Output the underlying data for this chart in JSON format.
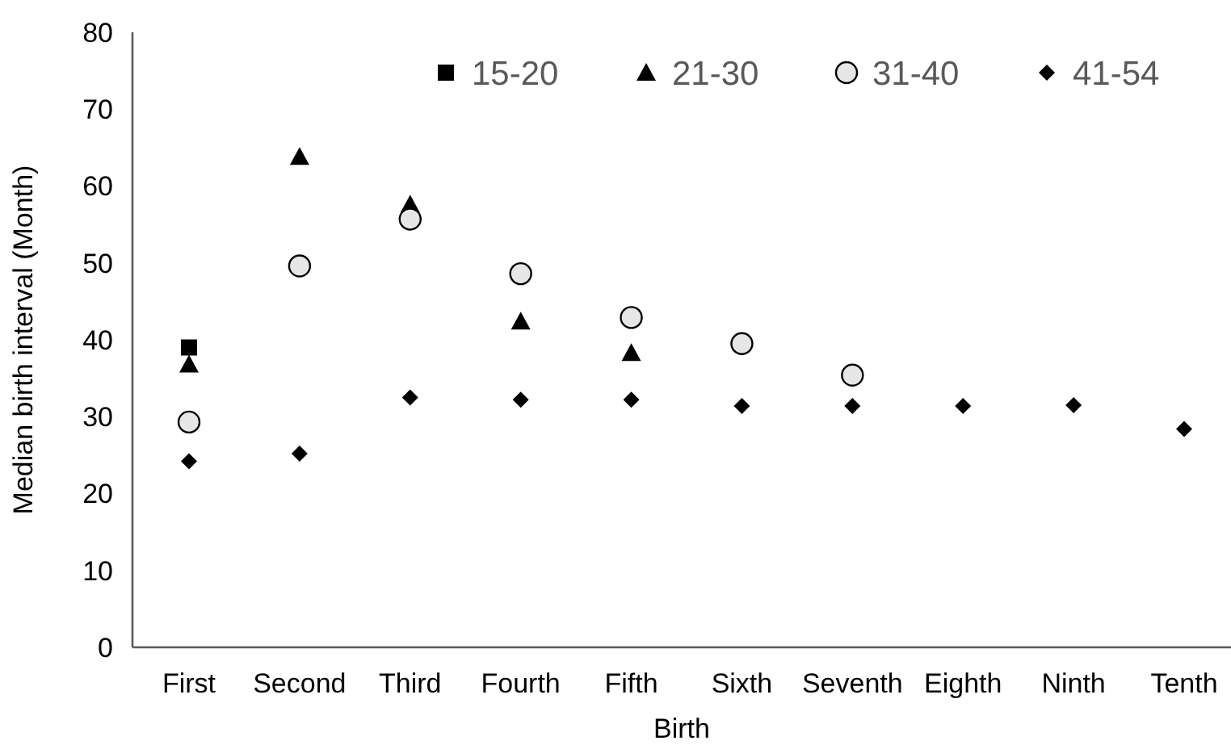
{
  "chart_data": {
    "type": "scatter",
    "xlabel": "Birth",
    "ylabel": "Median birth interval (Month)",
    "categories": [
      "First",
      "Second",
      "Third",
      "Fourth",
      "Fifth",
      "Sixth",
      "Seventh",
      "Eighth",
      "Ninth",
      "Tenth"
    ],
    "ylim": [
      0,
      80
    ],
    "yticks": [
      0,
      10,
      20,
      30,
      40,
      50,
      60,
      70,
      80
    ],
    "grid": false,
    "legend": "top right",
    "series": [
      {
        "name": "15-20",
        "color": "#000000",
        "marker": "square",
        "values": [
          39,
          null,
          null,
          null,
          null,
          null,
          null,
          null,
          null,
          null
        ]
      },
      {
        "name": "21-30",
        "color": "#000000",
        "marker": "triangle",
        "values": [
          36.8,
          63.8,
          57.6,
          42.4,
          38.3,
          null,
          null,
          null,
          null,
          null
        ]
      },
      {
        "name": "31-40",
        "color": "#e6e6e6",
        "marker": "circle",
        "values": [
          29.3,
          49.6,
          55.7,
          48.6,
          42.9,
          39.5,
          35.4,
          null,
          null,
          null
        ]
      },
      {
        "name": "41-54",
        "color": "#000000",
        "marker": "diamond",
        "values": [
          24.2,
          25.2,
          32.5,
          32.2,
          32.2,
          31.4,
          31.4,
          31.4,
          31.5,
          28.4
        ]
      }
    ]
  }
}
